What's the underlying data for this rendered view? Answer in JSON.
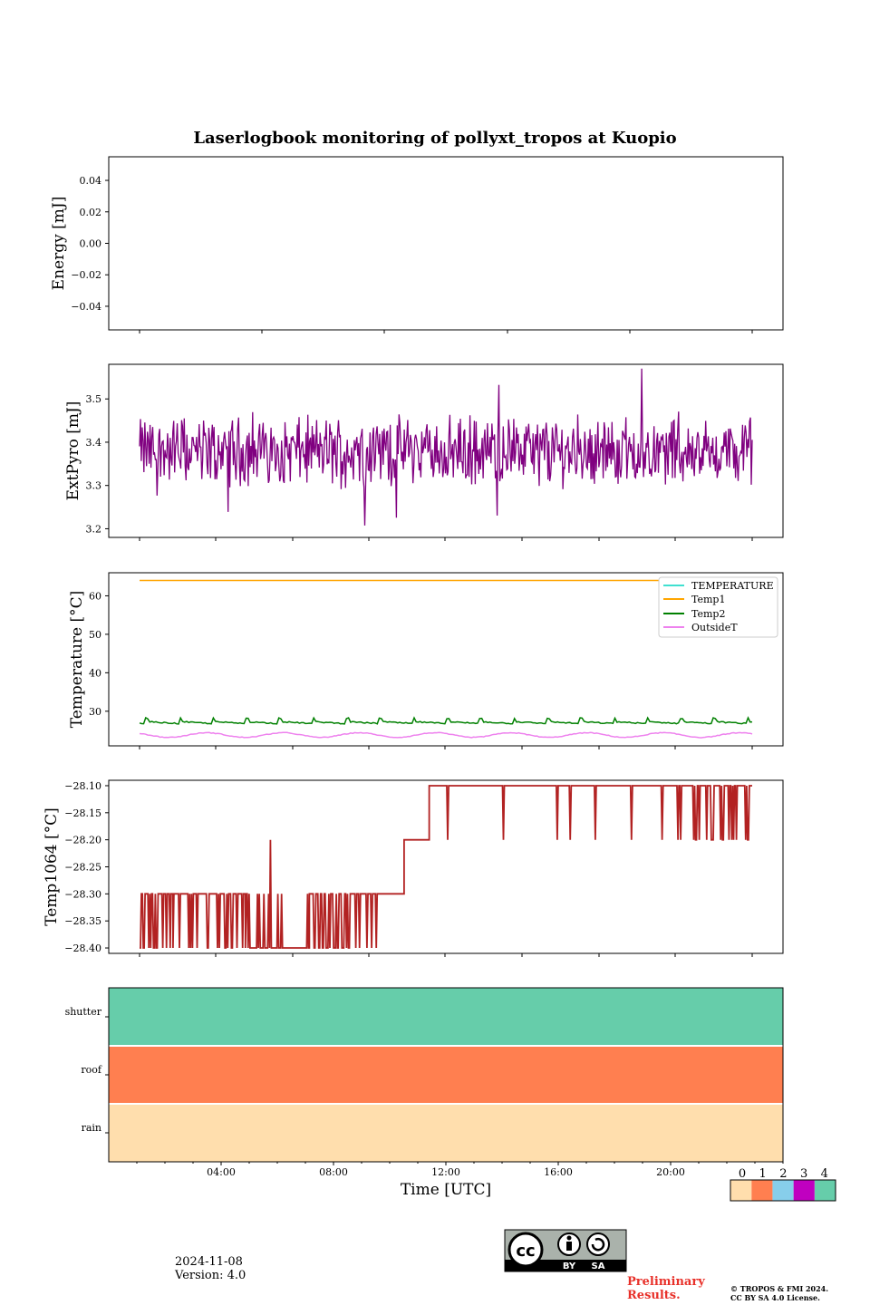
{
  "title": "Laserlogbook monitoring of pollyxt_tropos at Kuopio",
  "colors": {
    "pyro": "#800080",
    "temperature": "#40e0d0",
    "temp1": "#ffa500",
    "temp2": "#008000",
    "outsideT": "#ee82ee",
    "temp1064": "#b22222",
    "shutter": "#66cdaa",
    "roof": "#ff7f50",
    "rain": "#ffdead",
    "class2": "#87ceeb",
    "class3": "#c000c0"
  },
  "chart_data": [
    {
      "type": "line",
      "ylabel": "Energy [mJ]",
      "ylim": [
        -0.055,
        0.055
      ],
      "yticks": [
        "0.04",
        "0.02",
        "0.00",
        "−0.02",
        "−0.04"
      ],
      "series": []
    },
    {
      "type": "line",
      "ylabel": "ExtPyro [mJ]",
      "ylim": [
        3.18,
        3.58
      ],
      "yticks": [
        "3.5",
        "3.4",
        "3.3",
        "3.2"
      ],
      "series": [
        {
          "name": "ExtPyro",
          "x_hours_range": [
            1,
            23
          ],
          "mean": 3.38,
          "min": 3.2,
          "max": 3.57
        }
      ]
    },
    {
      "type": "line",
      "ylabel": "Temperature [°C]",
      "ylim": [
        21,
        66
      ],
      "yticks": [
        "60",
        "50",
        "40",
        "30"
      ],
      "legend": "top-right",
      "series": [
        {
          "name": "TEMPERATURE",
          "values": []
        },
        {
          "name": "Temp1",
          "x": [
            1,
            23
          ],
          "y": [
            64,
            64
          ]
        },
        {
          "name": "Temp2",
          "x_hours_range": [
            1,
            23
          ],
          "mean": 27.5
        },
        {
          "name": "OutsideT",
          "x_hours_range": [
            1,
            23
          ],
          "mean": 23.8
        }
      ]
    },
    {
      "type": "line",
      "ylabel": "Temp1064 [°C]",
      "ylim": [
        -28.41,
        -28.09
      ],
      "yticks": [
        "−28.10",
        "−28.15",
        "−28.20",
        "−28.25",
        "−28.30",
        "−28.35",
        "−28.40"
      ],
      "series": [
        {
          "name": "Temp1064",
          "levels": [
            -28.4,
            -28.3,
            -28.2,
            -28.1
          ]
        }
      ]
    },
    {
      "type": "heatmap",
      "xlabel": "Time [UTC]",
      "xticks": [
        "04:00",
        "08:00",
        "12:00",
        "16:00",
        "20:00"
      ],
      "rows": [
        "shutter",
        "roof",
        "rain"
      ],
      "row_values": [
        4,
        1,
        0
      ],
      "colorbar_ticks": [
        "0",
        "1",
        "2",
        "3",
        "4"
      ]
    }
  ],
  "footer": {
    "date": "2024-11-08",
    "version": "Version: 4.0",
    "license_badge": [
      "BY",
      "SA"
    ],
    "preliminary_1": "Preliminary",
    "preliminary_2": "Results.",
    "copyright_1": "© TROPOS & FMI 2024.",
    "copyright_2": "CC BY SA 4.0 License."
  }
}
